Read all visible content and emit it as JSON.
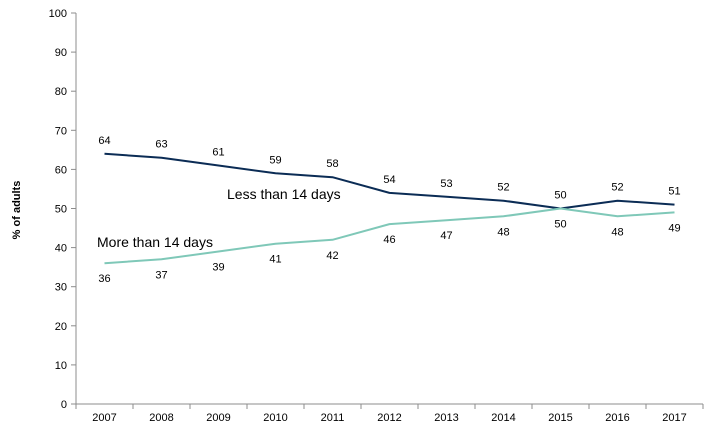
{
  "chart_data": {
    "type": "line",
    "title": "",
    "xlabel": "",
    "ylabel": "% of adults",
    "ylim": [
      0,
      100
    ],
    "yticks": [
      0,
      10,
      20,
      30,
      40,
      50,
      60,
      70,
      80,
      90,
      100
    ],
    "grid": false,
    "legend": "none",
    "categories": [
      "2007",
      "2008",
      "2009",
      "2010",
      "2011",
      "2012",
      "2013",
      "2014",
      "2015",
      "2016",
      "2017"
    ],
    "series": [
      {
        "name": "Less than 14 days",
        "color": "#0b2c55",
        "values": [
          64,
          63,
          61,
          59,
          58,
          54,
          53,
          52,
          50,
          52,
          51
        ],
        "label_side": "above"
      },
      {
        "name": "More than 14 days",
        "color": "#7fc8b8",
        "values": [
          36,
          37,
          39,
          41,
          42,
          46,
          47,
          48,
          50,
          48,
          49
        ],
        "label_side": "below"
      }
    ]
  }
}
